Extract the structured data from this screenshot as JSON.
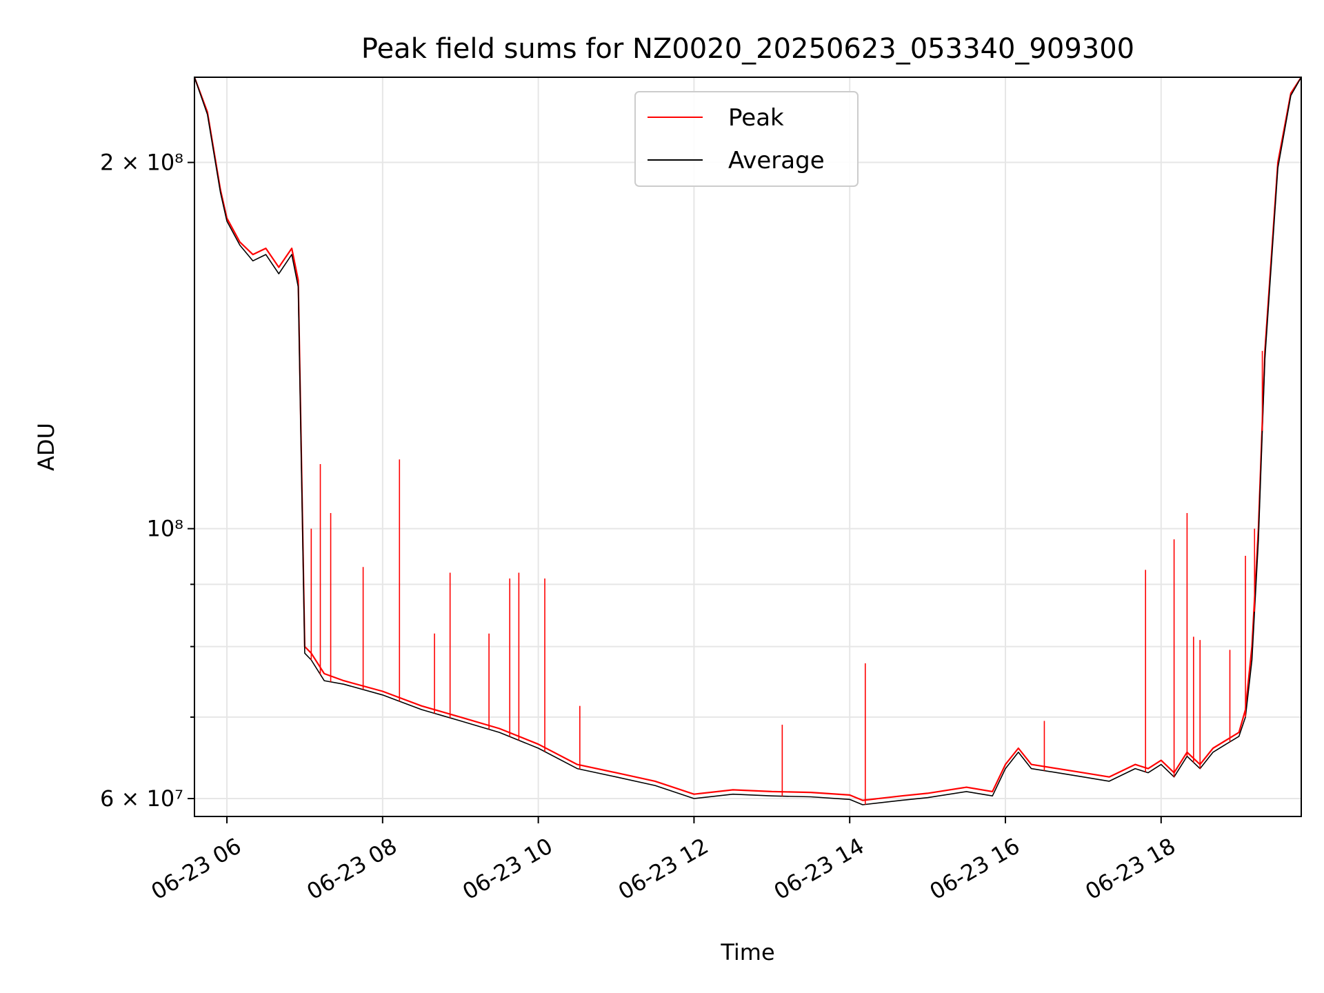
{
  "chart_data": {
    "type": "line",
    "title": "Peak field sums for NZ0020_20250623_053340_909300",
    "xlabel": "Time",
    "ylabel": "ADU",
    "yscale": "log",
    "ylim": [
      58000000,
      235000000
    ],
    "xlim": [
      "2025-06-23 05:35",
      "2025-06-23 19:48"
    ],
    "grid": true,
    "legend_position": "upper center",
    "x_ticks": [
      {
        "value": "2025-06-23 06:00",
        "label": "06-23 06"
      },
      {
        "value": "2025-06-23 08:00",
        "label": "06-23 08"
      },
      {
        "value": "2025-06-23 10:00",
        "label": "06-23 10"
      },
      {
        "value": "2025-06-23 12:00",
        "label": "06-23 12"
      },
      {
        "value": "2025-06-23 14:00",
        "label": "06-23 14"
      },
      {
        "value": "2025-06-23 16:00",
        "label": "06-23 16"
      },
      {
        "value": "2025-06-23 18:00",
        "label": "06-23 18"
      }
    ],
    "y_ticks": [
      {
        "value": 60000000,
        "label": "6 × 10⁷"
      },
      {
        "value": 100000000,
        "label": "10⁸"
      },
      {
        "value": 200000000,
        "label": "2 × 10⁸"
      }
    ],
    "y_minor_ticks": [
      70000000,
      80000000,
      90000000
    ],
    "series": [
      {
        "name": "Peak",
        "color": "#ff0000",
        "x": [
          "2025-06-23 05:35",
          "2025-06-23 05:45",
          "2025-06-23 05:55",
          "2025-06-23 06:00",
          "2025-06-23 06:10",
          "2025-06-23 06:20",
          "2025-06-23 06:30",
          "2025-06-23 06:40",
          "2025-06-23 06:50",
          "2025-06-23 06:55",
          "2025-06-23 07:00",
          "2025-06-23 07:05",
          "2025-06-23 07:15",
          "2025-06-23 07:30",
          "2025-06-23 08:00",
          "2025-06-23 08:30",
          "2025-06-23 09:00",
          "2025-06-23 09:30",
          "2025-06-23 10:00",
          "2025-06-23 10:30",
          "2025-06-23 11:00",
          "2025-06-23 11:30",
          "2025-06-23 12:00",
          "2025-06-23 12:30",
          "2025-06-23 13:00",
          "2025-06-23 13:30",
          "2025-06-23 14:00",
          "2025-06-23 14:10",
          "2025-06-23 14:40",
          "2025-06-23 15:00",
          "2025-06-23 15:30",
          "2025-06-23 15:50",
          "2025-06-23 16:00",
          "2025-06-23 16:10",
          "2025-06-23 16:20",
          "2025-06-23 16:40",
          "2025-06-23 17:00",
          "2025-06-23 17:20",
          "2025-06-23 17:40",
          "2025-06-23 17:50",
          "2025-06-23 18:00",
          "2025-06-23 18:10",
          "2025-06-23 18:20",
          "2025-06-23 18:30",
          "2025-06-23 18:40",
          "2025-06-23 18:50",
          "2025-06-23 19:00",
          "2025-06-23 19:05",
          "2025-06-23 19:10",
          "2025-06-23 19:15",
          "2025-06-23 19:20",
          "2025-06-23 19:30",
          "2025-06-23 19:40",
          "2025-06-23 19:48"
        ],
        "y": [
          235000000,
          220000000,
          190000000,
          180000000,
          172000000,
          168000000,
          170000000,
          164000000,
          170000000,
          160000000,
          80000000,
          79000000,
          76000000,
          75000000,
          73500000,
          71500000,
          70000000,
          68500000,
          66500000,
          64000000,
          63000000,
          62000000,
          60500000,
          61000000,
          60800000,
          60700000,
          60400000,
          59800000,
          60300000,
          60600000,
          61300000,
          60800000,
          64000000,
          66000000,
          64000000,
          63500000,
          63000000,
          62500000,
          64000000,
          63500000,
          64500000,
          63000000,
          65500000,
          64000000,
          66000000,
          67000000,
          68000000,
          71000000,
          80000000,
          100000000,
          140000000,
          200000000,
          228000000,
          235000000
        ]
      },
      {
        "name": "Average",
        "color": "#000000",
        "x": [
          "2025-06-23 05:35",
          "2025-06-23 05:45",
          "2025-06-23 05:55",
          "2025-06-23 06:00",
          "2025-06-23 06:10",
          "2025-06-23 06:20",
          "2025-06-23 06:30",
          "2025-06-23 06:40",
          "2025-06-23 06:50",
          "2025-06-23 06:55",
          "2025-06-23 07:00",
          "2025-06-23 07:05",
          "2025-06-23 07:15",
          "2025-06-23 07:30",
          "2025-06-23 08:00",
          "2025-06-23 08:30",
          "2025-06-23 09:00",
          "2025-06-23 09:30",
          "2025-06-23 10:00",
          "2025-06-23 10:30",
          "2025-06-23 11:00",
          "2025-06-23 11:30",
          "2025-06-23 12:00",
          "2025-06-23 12:30",
          "2025-06-23 13:00",
          "2025-06-23 13:30",
          "2025-06-23 14:00",
          "2025-06-23 14:10",
          "2025-06-23 14:40",
          "2025-06-23 15:00",
          "2025-06-23 15:30",
          "2025-06-23 15:50",
          "2025-06-23 16:00",
          "2025-06-23 16:10",
          "2025-06-23 16:20",
          "2025-06-23 16:40",
          "2025-06-23 17:00",
          "2025-06-23 17:20",
          "2025-06-23 17:40",
          "2025-06-23 17:50",
          "2025-06-23 18:00",
          "2025-06-23 18:10",
          "2025-06-23 18:20",
          "2025-06-23 18:30",
          "2025-06-23 18:40",
          "2025-06-23 18:50",
          "2025-06-23 19:00",
          "2025-06-23 19:05",
          "2025-06-23 19:10",
          "2025-06-23 19:15",
          "2025-06-23 19:20",
          "2025-06-23 19:30",
          "2025-06-23 19:40",
          "2025-06-23 19:48"
        ],
        "y": [
          235000000,
          219000000,
          189000000,
          179000000,
          171000000,
          166000000,
          168000000,
          162000000,
          168000000,
          158000000,
          79000000,
          78000000,
          75000000,
          74500000,
          73000000,
          71000000,
          69500000,
          68000000,
          66000000,
          63500000,
          62500000,
          61500000,
          60000000,
          60500000,
          60300000,
          60200000,
          59900000,
          59300000,
          59800000,
          60100000,
          60800000,
          60300000,
          63500000,
          65500000,
          63500000,
          63000000,
          62500000,
          62000000,
          63500000,
          63000000,
          64000000,
          62500000,
          65000000,
          63500000,
          65500000,
          66500000,
          67500000,
          70000000,
          78000000,
          98000000,
          138000000,
          198000000,
          227000000,
          235000000
        ]
      }
    ],
    "spikes": [
      {
        "x": "2025-06-23 07:05",
        "y": 100000000
      },
      {
        "x": "2025-06-23 07:12",
        "y": 113000000
      },
      {
        "x": "2025-06-23 07:20",
        "y": 103000000
      },
      {
        "x": "2025-06-23 07:45",
        "y": 93000000
      },
      {
        "x": "2025-06-23 08:13",
        "y": 114000000
      },
      {
        "x": "2025-06-23 08:40",
        "y": 82000000
      },
      {
        "x": "2025-06-23 08:52",
        "y": 92000000
      },
      {
        "x": "2025-06-23 09:22",
        "y": 82000000
      },
      {
        "x": "2025-06-23 09:38",
        "y": 91000000
      },
      {
        "x": "2025-06-23 09:45",
        "y": 92000000
      },
      {
        "x": "2025-06-23 10:05",
        "y": 91000000
      },
      {
        "x": "2025-06-23 10:32",
        "y": 71500000
      },
      {
        "x": "2025-06-23 13:08",
        "y": 69000000
      },
      {
        "x": "2025-06-23 14:12",
        "y": 77500000
      },
      {
        "x": "2025-06-23 16:30",
        "y": 69500000
      },
      {
        "x": "2025-06-23 17:48",
        "y": 92500000
      },
      {
        "x": "2025-06-23 18:10",
        "y": 98000000
      },
      {
        "x": "2025-06-23 18:20",
        "y": 103000000
      },
      {
        "x": "2025-06-23 18:25",
        "y": 81500000
      },
      {
        "x": "2025-06-23 18:30",
        "y": 81000000
      },
      {
        "x": "2025-06-23 18:53",
        "y": 79500000
      },
      {
        "x": "2025-06-23 19:05",
        "y": 95000000
      },
      {
        "x": "2025-06-23 19:12",
        "y": 100000000
      },
      {
        "x": "2025-06-23 19:18",
        "y": 140000000
      }
    ]
  }
}
